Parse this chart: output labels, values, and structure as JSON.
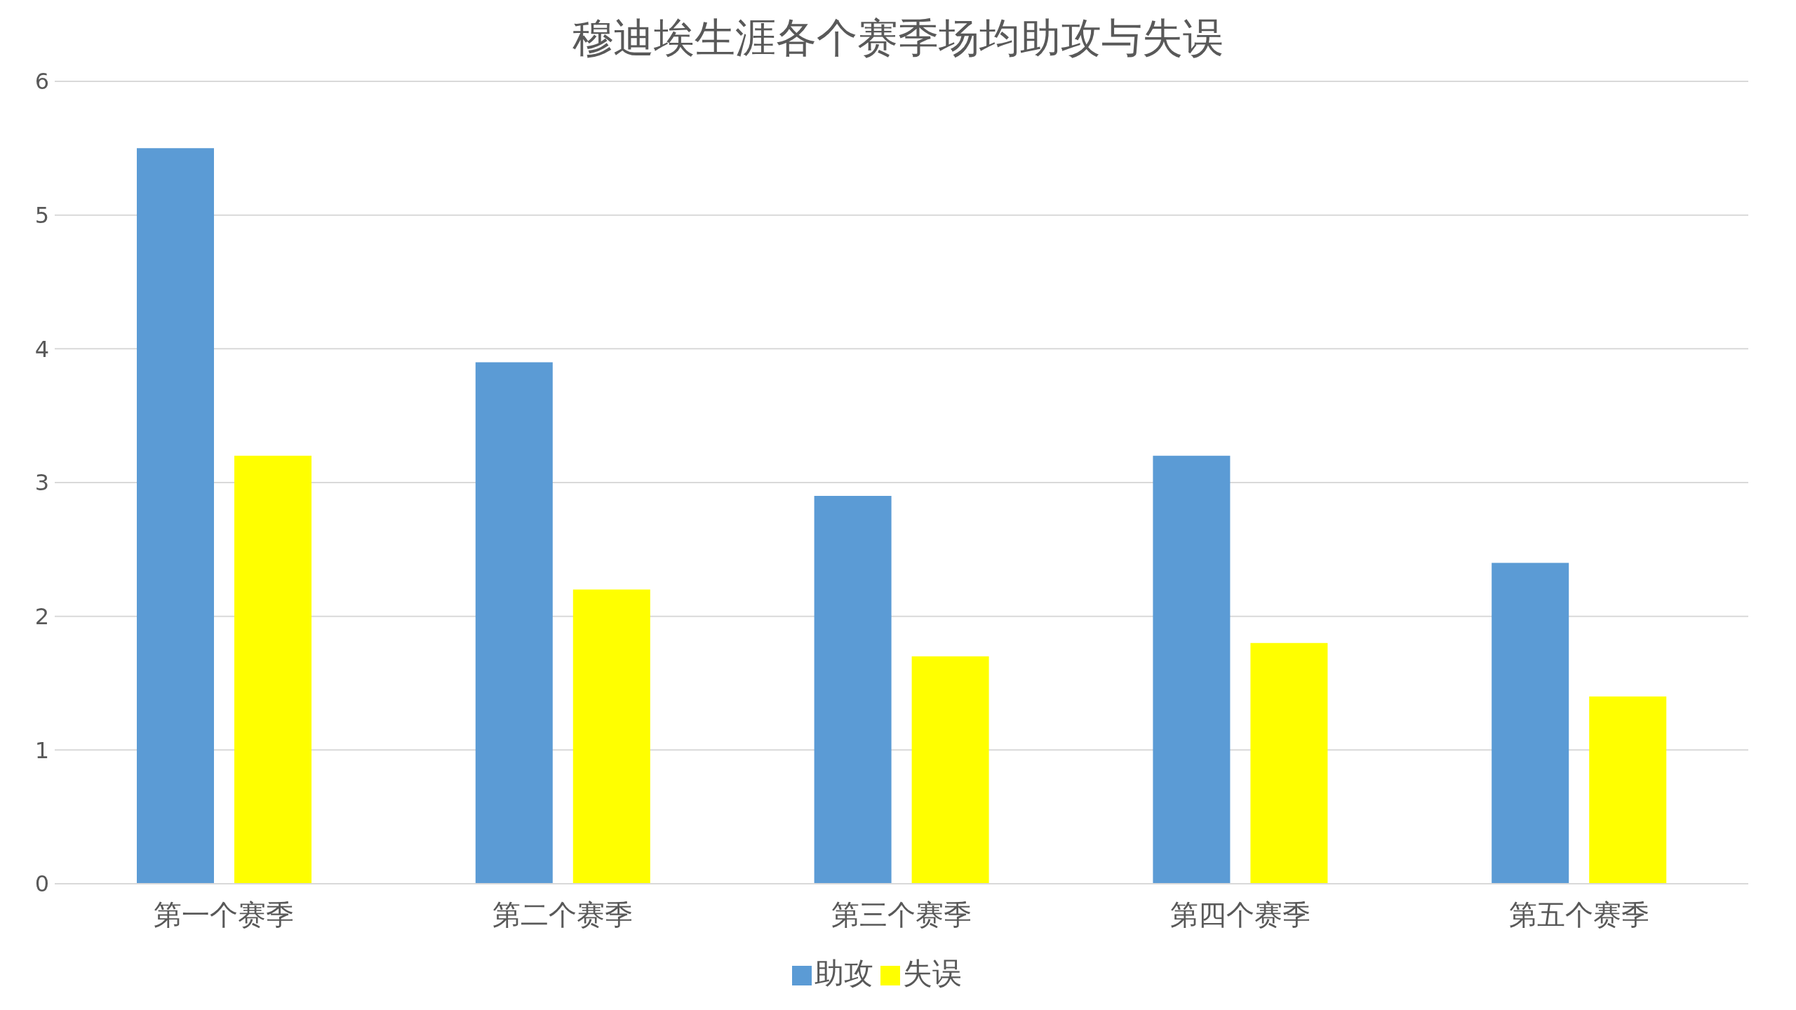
{
  "chart_data": {
    "type": "bar",
    "title": "穆迪埃生涯各个赛季场均助攻与失误",
    "categories": [
      "第一个赛季",
      "第二个赛季",
      "第三个赛季",
      "第四个赛季",
      "第五个赛季"
    ],
    "series": [
      {
        "name": "助攻",
        "color": "#5b9bd5",
        "values": [
          5.5,
          3.9,
          2.9,
          3.2,
          2.4
        ]
      },
      {
        "name": "失误",
        "color": "#ffff00",
        "values": [
          3.2,
          2.2,
          1.7,
          1.8,
          1.4
        ]
      }
    ],
    "ylim": [
      0,
      6
    ],
    "yticks": [
      0,
      1,
      2,
      3,
      4,
      5,
      6
    ],
    "grid": "y",
    "legend": "bottom"
  }
}
